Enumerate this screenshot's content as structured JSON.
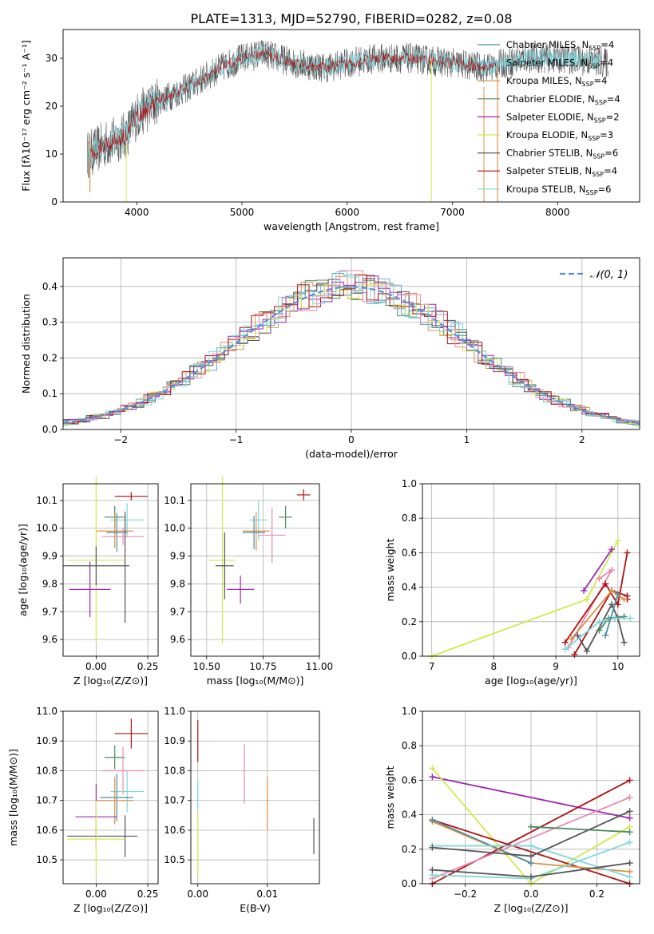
{
  "figure_title": "PLATE=1313, MJD=52790, FIBERID=0282, z=0.08",
  "colors": {
    "ChabMILES": "#4a8fa0",
    "SalpMILES": "#6aa9d0",
    "KroupaMILES": "#e0904a",
    "ChabELODIE": "#4e8a5e",
    "SalpELODIE": "#9c27b0",
    "KroupaELODIE": "#d4e84e",
    "ChabSTELIB": "#555555",
    "SalpSTELIB": "#b01010",
    "KroupaSTELIB": "#7fd6dc",
    "pink": "#e98ab0",
    "normal": "#5a8fd8",
    "grid": "#b0b0b0"
  },
  "chart_data": [
    {
      "id": "spectrum",
      "type": "line",
      "xlabel": "wavelength [Angstrom, rest frame]",
      "ylabel": "Flux [fλ10⁻¹⁷ erg cm⁻² s⁻¹ A⁻¹]",
      "xlim": [
        3300,
        8780
      ],
      "ylim": [
        0,
        36
      ],
      "xticks": [
        "4000",
        "5000",
        "6000",
        "7000",
        "8000"
      ],
      "yticks": [
        "0",
        "10",
        "20",
        "30"
      ],
      "continuum_x": [
        3550,
        3700,
        3900,
        4000,
        4200,
        4500,
        4800,
        5000,
        5200,
        5500,
        5800,
        6000,
        6300,
        6600,
        7000,
        7300,
        7700,
        8000,
        8500
      ],
      "continuum_y": [
        10,
        12,
        14,
        18,
        21,
        24,
        28,
        30,
        31,
        29,
        28,
        29,
        30,
        30,
        29,
        28,
        30,
        30,
        29
      ],
      "legend": [
        "Chabrier MILES, N_SSP=4",
        "Salpeter MILES, N_SSP=4",
        "Kroupa MILES, N_SSP=4",
        "Chabrier ELODIE, N_SSP=4",
        "Salpeter ELODIE, N_SSP=2",
        "Kroupa ELODIE, N_SSP=3",
        "Chabrier STELIB, N_SSP=6",
        "Salpeter STELIB, N_SSP=4",
        "Kroupa STELIB, N_SSP=6"
      ]
    },
    {
      "id": "residuals",
      "type": "histogram",
      "xlabel": "(data-model)/error",
      "ylabel": "Normed distribution",
      "xlim": [
        -2.5,
        2.5
      ],
      "ylim": [
        0,
        0.48
      ],
      "xticks": [
        "−2",
        "−1",
        "0",
        "1",
        "2"
      ],
      "yticks": [
        "0.0",
        "0.1",
        "0.2",
        "0.3",
        "0.4"
      ],
      "bin_width": 0.1,
      "normal_label": "𝒩(0, 1)",
      "legend": "top-right"
    },
    {
      "id": "age_vs_Z",
      "type": "scatter",
      "xlabel": "Z [log₁₀(Z/Z⊙)]",
      "ylabel": "age  [log₁₀(age/yr)]",
      "xlim": [
        -0.16,
        0.3
      ],
      "ylim": [
        9.54,
        10.16
      ],
      "xticks": [
        "0.00",
        "0.25"
      ],
      "yticks": [
        "9.6",
        "9.7",
        "9.8",
        "9.9",
        "10.0",
        "10.1"
      ],
      "points": [
        {
          "c": "SalpSTELIB",
          "x": 0.17,
          "y": 10.115,
          "xe": 0.08,
          "ye": 0.015
        },
        {
          "c": "ChabELODIE",
          "x": 0.09,
          "y": 10.04,
          "xe": 0.05,
          "ye": 0.04
        },
        {
          "c": "KroupaSTELIB",
          "x": 0.15,
          "y": 10.03,
          "xe": 0.08,
          "ye": 0.06
        },
        {
          "c": "KroupaMILES",
          "x": 0.09,
          "y": 9.99,
          "xe": 0.09,
          "ye": 0.06
        },
        {
          "c": "ChabMILES",
          "x": 0.1,
          "y": 9.985,
          "xe": 0.05,
          "ye": 0.07
        },
        {
          "c": "pink",
          "x": 0.13,
          "y": 9.97,
          "xe": 0.1,
          "ye": 0.03
        },
        {
          "c": "KroupaELODIE",
          "x": 0.0,
          "y": 9.885,
          "xe": 0.14,
          "ye": 0.3
        },
        {
          "c": "ChabSTELIB",
          "x": 0.0,
          "y": 9.865,
          "xe": 0.16,
          "ye": 0.07
        },
        {
          "c": "ChabSTELIB",
          "x": 0.14,
          "y": 9.86,
          "xe": 0.0,
          "ye": 0.2
        },
        {
          "c": "SalpELODIE",
          "x": -0.03,
          "y": 9.78,
          "xe": 0.1,
          "ye": 0.1
        }
      ]
    },
    {
      "id": "age_vs_mass",
      "type": "scatter",
      "xlabel": "mass [log₁₀(M/M⊙)]",
      "ylabel": "",
      "xlim": [
        10.43,
        11.0
      ],
      "ylim": [
        9.54,
        10.16
      ],
      "xticks": [
        "10.50",
        "10.75",
        "11.00"
      ],
      "yticks": [
        "9.6",
        "9.7",
        "9.8",
        "9.9",
        "10.0",
        "10.1"
      ],
      "points": [
        {
          "c": "SalpSTELIB",
          "x": 10.93,
          "y": 10.12,
          "xe": 0.03,
          "ye": 0.02
        },
        {
          "c": "ChabELODIE",
          "x": 10.85,
          "y": 10.04,
          "xe": 0.03,
          "ye": 0.04
        },
        {
          "c": "KroupaSTELIB",
          "x": 10.73,
          "y": 10.03,
          "xe": 0.04,
          "ye": 0.07
        },
        {
          "c": "KroupaMILES",
          "x": 10.72,
          "y": 9.99,
          "xe": 0.06,
          "ye": 0.07
        },
        {
          "c": "ChabMILES",
          "x": 10.71,
          "y": 9.985,
          "xe": 0.05,
          "ye": 0.06
        },
        {
          "c": "pink",
          "x": 10.79,
          "y": 9.975,
          "xe": 0.06,
          "ye": 0.1
        },
        {
          "c": "KroupaELODIE",
          "x": 10.57,
          "y": 9.885,
          "xe": 0.06,
          "ye": 0.3
        },
        {
          "c": "ChabSTELIB",
          "x": 10.58,
          "y": 9.865,
          "xe": 0.04,
          "ye": 0.12
        },
        {
          "c": "SalpELODIE",
          "x": 10.65,
          "y": 9.78,
          "xe": 0.06,
          "ye": 0.05
        }
      ]
    },
    {
      "id": "weight_vs_age",
      "type": "line",
      "xlabel": "age  [log₁₀(age/yr)]",
      "ylabel": "mass weight",
      "xlim": [
        6.85,
        10.35
      ],
      "ylim": [
        0,
        1.0
      ],
      "xticks": [
        "7",
        "8",
        "9",
        "10"
      ],
      "yticks": [
        "0.0",
        "0.2",
        "0.4",
        "0.6",
        "0.8",
        "1.0"
      ],
      "series": [
        {
          "c": "KroupaELODIE",
          "x": [
            7.0,
            9.5,
            10.0
          ],
          "y": [
            0.0,
            0.33,
            0.67
          ]
        },
        {
          "c": "SalpELODIE",
          "x": [
            9.45,
            9.9
          ],
          "y": [
            0.38,
            0.62
          ]
        },
        {
          "c": "pink",
          "x": [
            9.2,
            9.9,
            9.7
          ],
          "y": [
            0.05,
            0.5,
            0.45
          ]
        },
        {
          "c": "SalpSTELIB",
          "x": [
            9.15,
            9.8,
            10.0,
            10.15
          ],
          "y": [
            0.08,
            0.42,
            0.3,
            0.6
          ]
        },
        {
          "c": "SalpSTELIB",
          "x": [
            9.3,
            9.9,
            10.15,
            10.15
          ],
          "y": [
            0.01,
            0.38,
            0.35,
            0.33
          ]
        },
        {
          "c": "KroupaMILES",
          "x": [
            9.25,
            9.9,
            10.1
          ],
          "y": [
            0.1,
            0.38,
            0.33
          ]
        },
        {
          "c": "ChabSTELIB",
          "x": [
            9.35,
            9.5,
            9.9,
            10.0,
            10.1
          ],
          "y": [
            0.12,
            0.03,
            0.3,
            0.22,
            0.08
          ]
        },
        {
          "c": "ChabELODIE",
          "x": [
            9.7,
            9.85,
            10.1
          ],
          "y": [
            0.15,
            0.22,
            0.23
          ]
        },
        {
          "c": "KroupaSTELIB",
          "x": [
            9.15,
            9.7,
            9.95,
            10.2
          ],
          "y": [
            0.04,
            0.2,
            0.22,
            0.22
          ]
        },
        {
          "c": "ChabMILES",
          "x": [
            9.8,
            10.0
          ],
          "y": [
            0.12,
            0.36
          ]
        }
      ]
    },
    {
      "id": "mass_vs_Z",
      "type": "scatter",
      "xlabel": "Z [log₁₀(Z/Z⊙)]",
      "ylabel": "mass [log₁₀(M/M⊙)]",
      "xlim": [
        -0.16,
        0.3
      ],
      "ylim": [
        10.42,
        11.0
      ],
      "xticks": [
        "0.00",
        "0.25"
      ],
      "yticks": [
        "10.5",
        "10.6",
        "10.7",
        "10.8",
        "10.9",
        "11.0"
      ],
      "points": [
        {
          "c": "SalpSTELIB",
          "x": 0.17,
          "y": 10.925,
          "xe": 0.08,
          "ye": 0.05
        },
        {
          "c": "ChabELODIE",
          "x": 0.09,
          "y": 10.845,
          "xe": 0.05,
          "ye": 0.04
        },
        {
          "c": "pink",
          "x": 0.13,
          "y": 10.8,
          "xe": 0.1,
          "ye": 0.08
        },
        {
          "c": "KroupaSTELIB",
          "x": 0.15,
          "y": 10.73,
          "xe": 0.08,
          "ye": 0.07
        },
        {
          "c": "ChabMILES",
          "x": 0.1,
          "y": 10.71,
          "xe": 0.08,
          "ye": 0.08
        },
        {
          "c": "KroupaMILES",
          "x": 0.09,
          "y": 10.7,
          "xe": 0.09,
          "ye": 0.08
        },
        {
          "c": "SalpELODIE",
          "x": 0.0,
          "y": 10.645,
          "xe": 0.1,
          "ye": 0.11
        },
        {
          "c": "ChabSTELIB",
          "x": 0.03,
          "y": 10.58,
          "xe": 0.17,
          "ye": 0.0
        },
        {
          "c": "ChabSTELIB",
          "x": 0.14,
          "y": 10.58,
          "xe": 0.0,
          "ye": 0.07
        },
        {
          "c": "KroupaELODIE",
          "x": 0.0,
          "y": 10.57,
          "xe": 0.14,
          "ye": 0.13
        }
      ]
    },
    {
      "id": "mass_vs_EBV",
      "type": "scatter",
      "xlabel": "E(B-V)",
      "ylabel": "",
      "xlim": [
        -0.001,
        0.0175
      ],
      "ylim": [
        10.42,
        11.0
      ],
      "xticks": [
        "0.00",
        "0.01"
      ],
      "yticks": [
        "10.5",
        "10.6",
        "10.7",
        "10.8",
        "10.9",
        "11.0"
      ],
      "points": [
        {
          "c": "SalpSTELIB",
          "x": 0.0,
          "y": 10.9,
          "xe": 0.0,
          "ye": 0.07
        },
        {
          "c": "pink",
          "x": 0.0067,
          "y": 10.79,
          "xe": 0.0,
          "ye": 0.1
        },
        {
          "c": "KroupaMILES",
          "x": 0.01,
          "y": 10.69,
          "xe": 0.0,
          "ye": 0.09
        },
        {
          "c": "ChabSTELIB",
          "x": 0.0167,
          "y": 10.58,
          "xe": 0.0,
          "ye": 0.06
        },
        {
          "c": "KroupaSTELIB",
          "x": 0.0,
          "y": 10.72,
          "xe": 0.0,
          "ye": 0.05
        },
        {
          "c": "KroupaELODIE",
          "x": 0.0,
          "y": 10.55,
          "xe": 0.0,
          "ye": 0.11
        }
      ]
    },
    {
      "id": "weight_vs_Z",
      "type": "line",
      "xlabel": "Z [log₁₀(Z/Z⊙)]",
      "ylabel": "mass weight",
      "xlim": [
        -0.33,
        0.33
      ],
      "ylim": [
        0,
        1.0
      ],
      "xticks": [
        "−0.2",
        "0.0",
        "0.2"
      ],
      "yticks": [
        "0.0",
        "0.2",
        "0.4",
        "0.6",
        "0.8",
        "1.0"
      ],
      "series": [
        {
          "c": "SalpELODIE",
          "x": [
            -0.3,
            0.3
          ],
          "y": [
            0.62,
            0.38
          ]
        },
        {
          "c": "KroupaELODIE",
          "x": [
            -0.3,
            0.0,
            0.3
          ],
          "y": [
            0.67,
            0.0,
            0.33
          ]
        },
        {
          "c": "SalpSTELIB",
          "x": [
            -0.3,
            0.3
          ],
          "y": [
            0.0,
            0.6
          ]
        },
        {
          "c": "SalpSTELIB",
          "x": [
            -0.3,
            0.3
          ],
          "y": [
            0.37,
            0.0
          ]
        },
        {
          "c": "pink",
          "x": [
            -0.3,
            0.3
          ],
          "y": [
            0.03,
            0.5
          ]
        },
        {
          "c": "KroupaMILES",
          "x": [
            -0.3,
            0.0,
            0.3
          ],
          "y": [
            0.36,
            0.12,
            0.07
          ]
        },
        {
          "c": "ChabMILES",
          "x": [
            -0.3,
            0.0
          ],
          "y": [
            0.37,
            0.12
          ]
        },
        {
          "c": "ChabELODIE",
          "x": [
            0.0,
            0.3
          ],
          "y": [
            0.33,
            0.3
          ]
        },
        {
          "c": "KroupaSTELIB",
          "x": [
            -0.3,
            0.0,
            0.3
          ],
          "y": [
            0.22,
            0.22,
            0.04
          ]
        },
        {
          "c": "KroupaSTELIB",
          "x": [
            -0.3,
            0.0,
            0.3
          ],
          "y": [
            0.05,
            0.03,
            0.24
          ]
        },
        {
          "c": "ChabSTELIB",
          "x": [
            -0.3,
            0.0,
            0.3
          ],
          "y": [
            0.21,
            0.16,
            0.42
          ]
        },
        {
          "c": "ChabSTELIB",
          "x": [
            -0.3,
            0.0,
            0.3
          ],
          "y": [
            0.08,
            0.04,
            0.12
          ]
        }
      ]
    }
  ]
}
